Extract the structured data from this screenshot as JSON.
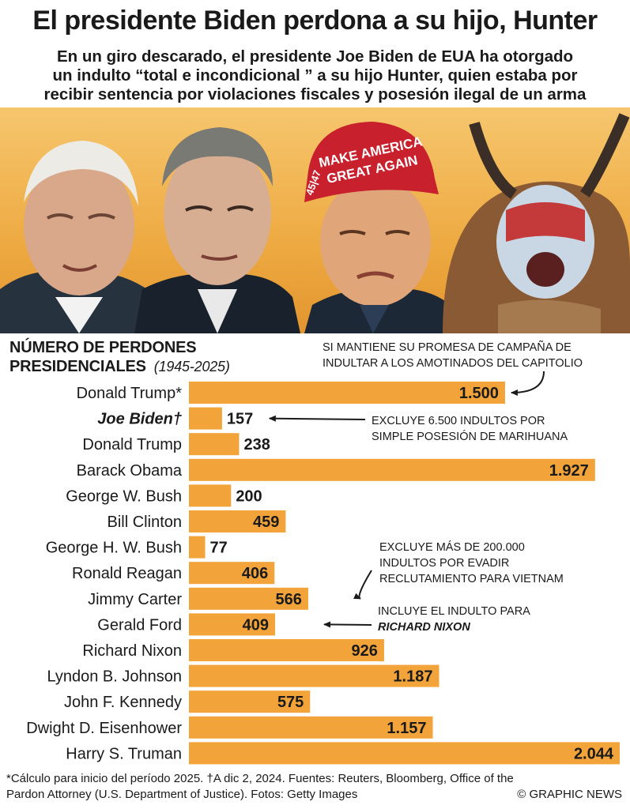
{
  "header": {
    "title": "El presidente Biden perdona a su hijo, Hunter",
    "subtitle_lines": [
      "En un giro descarado, el presidente Joe Biden de EUA ha otorgado",
      "un indulto “total e incondicional ” a su hijo Hunter, quien estaba por",
      "recibir sentencia por violaciones fiscales y posesión ilegal de un arma"
    ]
  },
  "photo": {
    "cap_text_line1": "MAKE AMERICA",
    "cap_text_line2": "GREAT AGAIN",
    "cap_side": "45|47"
  },
  "colors": {
    "bar": "#f2a33a",
    "band": "#eeaa42",
    "text": "#1a1a1a"
  },
  "chart_data": {
    "type": "bar",
    "orientation": "horizontal",
    "title_line1": "NÚMERO DE PERDONES",
    "title_line2": "PRESIDENCIALES",
    "subtitle": "(1945-2025)",
    "categories": [
      "Donald Trump*",
      "Joe Biden†",
      "Donald Trump",
      "Barack Obama",
      "George W. Bush",
      "Bill Clinton",
      "George H. W. Bush",
      "Ronald Reagan",
      "Jimmy Carter",
      "Gerald Ford",
      "Richard Nixon",
      "Lyndon B. Johnson",
      "John F. Kennedy",
      "Dwight D. Eisenhower",
      "Harry S. Truman"
    ],
    "values": [
      1500,
      157,
      238,
      1927,
      200,
      459,
      77,
      406,
      566,
      409,
      926,
      1187,
      575,
      1157,
      2044
    ],
    "value_labels": [
      "1.500",
      "157",
      "238",
      "1.927",
      "200",
      "459",
      "77",
      "406",
      "566",
      "409",
      "926",
      "1.187",
      "575",
      "1.157",
      "2.044"
    ],
    "highlight_index": 1,
    "xlim": [
      0,
      2044
    ],
    "annotations": [
      {
        "target_index": 0,
        "lines": [
          "SI MANTIENE SU PROMESA DE CAMPAÑA DE",
          "INDULTAR A LOS AMOTINADOS DEL CAPITOLIO"
        ]
      },
      {
        "target_index": 1,
        "lines": [
          "EXCLUYE 6.500 INDULTOS POR",
          "SIMPLE POSESIÓN DE MARIHUANA"
        ]
      },
      {
        "target_index": 8,
        "lines": [
          "EXCLUYE MÁS DE 200.000",
          "INDULTOS POR  EVADIR",
          "RECLUTAMIENTO PARA VIETNAM"
        ]
      },
      {
        "target_index": 9,
        "lines": [
          "INCLUYE EL INDULTO PARA",
          "RICHARD NIXON"
        ]
      }
    ]
  },
  "footer": {
    "line1": "*Cálculo para inicio del período 2025. †A dic 2,  2024. Fuentes: Reuters, Bloomberg, Office of the",
    "line2": "Pardon Attorney (U.S. Department of Justice). Fotos: Getty Images",
    "credit": "© GRAPHIC NEWS"
  }
}
